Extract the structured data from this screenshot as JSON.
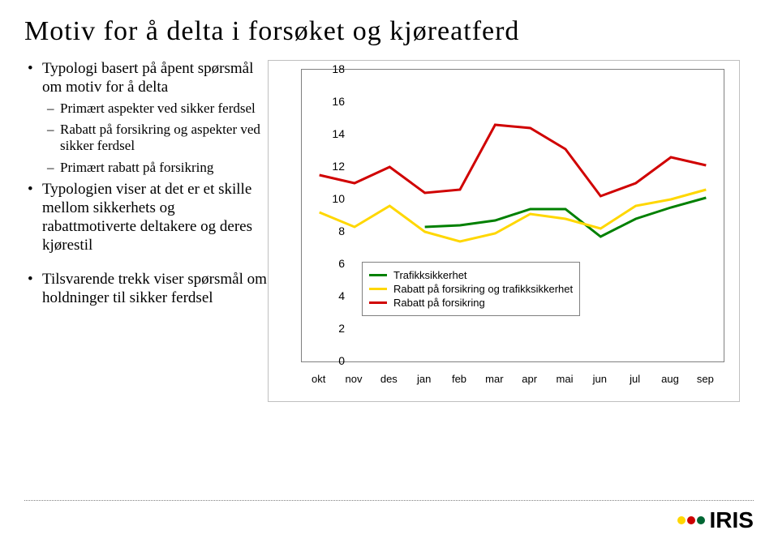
{
  "title": "Motiv for å delta i forsøket og kjøreatferd",
  "bullets": {
    "level1": [
      {
        "text": "Typologi basert på åpent spørsmål om motiv for å delta",
        "children": [
          "Primært aspekter ved sikker ferdsel",
          "Rabatt på forsikring og aspekter ved sikker ferdsel",
          "Primært rabatt på forsikring"
        ]
      },
      {
        "text": "Typologien viser at det er et skille mellom sikkerhets og rabattmotiverte deltakere og deres kjørestil",
        "children": []
      },
      {
        "text": "Tilsvarende trekk viser spørsmål om holdninger til sikker ferdsel",
        "children": []
      }
    ]
  },
  "chart": {
    "type": "line",
    "y_ticks": [
      0,
      2,
      4,
      6,
      8,
      10,
      12,
      14,
      16,
      18
    ],
    "ylim": [
      0,
      18
    ],
    "x_labels": [
      "okt",
      "nov",
      "des",
      "jan",
      "feb",
      "mar",
      "apr",
      "mai",
      "jun",
      "jul",
      "aug",
      "sep"
    ],
    "series": [
      {
        "name": "Trafikksikkerhet",
        "color": "#008000",
        "values": [
          null,
          null,
          null,
          8.3,
          8.4,
          8.7,
          9.4,
          9.4,
          7.7,
          8.8,
          9.5,
          10.1
        ]
      },
      {
        "name": "Rabatt på forsikring og trafikksikkerhet",
        "color": "#ffd700",
        "values": [
          9.2,
          8.3,
          9.6,
          8.0,
          7.4,
          7.9,
          9.1,
          8.8,
          8.2,
          9.6,
          10.0,
          10.6
        ]
      },
      {
        "name": "Rabatt på forsikring",
        "color": "#d00000",
        "values": [
          11.5,
          11.0,
          12.0,
          10.4,
          10.6,
          14.6,
          14.4,
          13.1,
          10.2,
          11.0,
          12.6,
          12.1
        ]
      }
    ],
    "legend_border": "#808080",
    "axis_color": "#808080",
    "line_width": 3,
    "background": "#ffffff",
    "label_fontsize": 13
  },
  "logo": {
    "text": "IRIS",
    "dots": [
      "#ffd700",
      "#cc0000",
      "#006633"
    ]
  }
}
